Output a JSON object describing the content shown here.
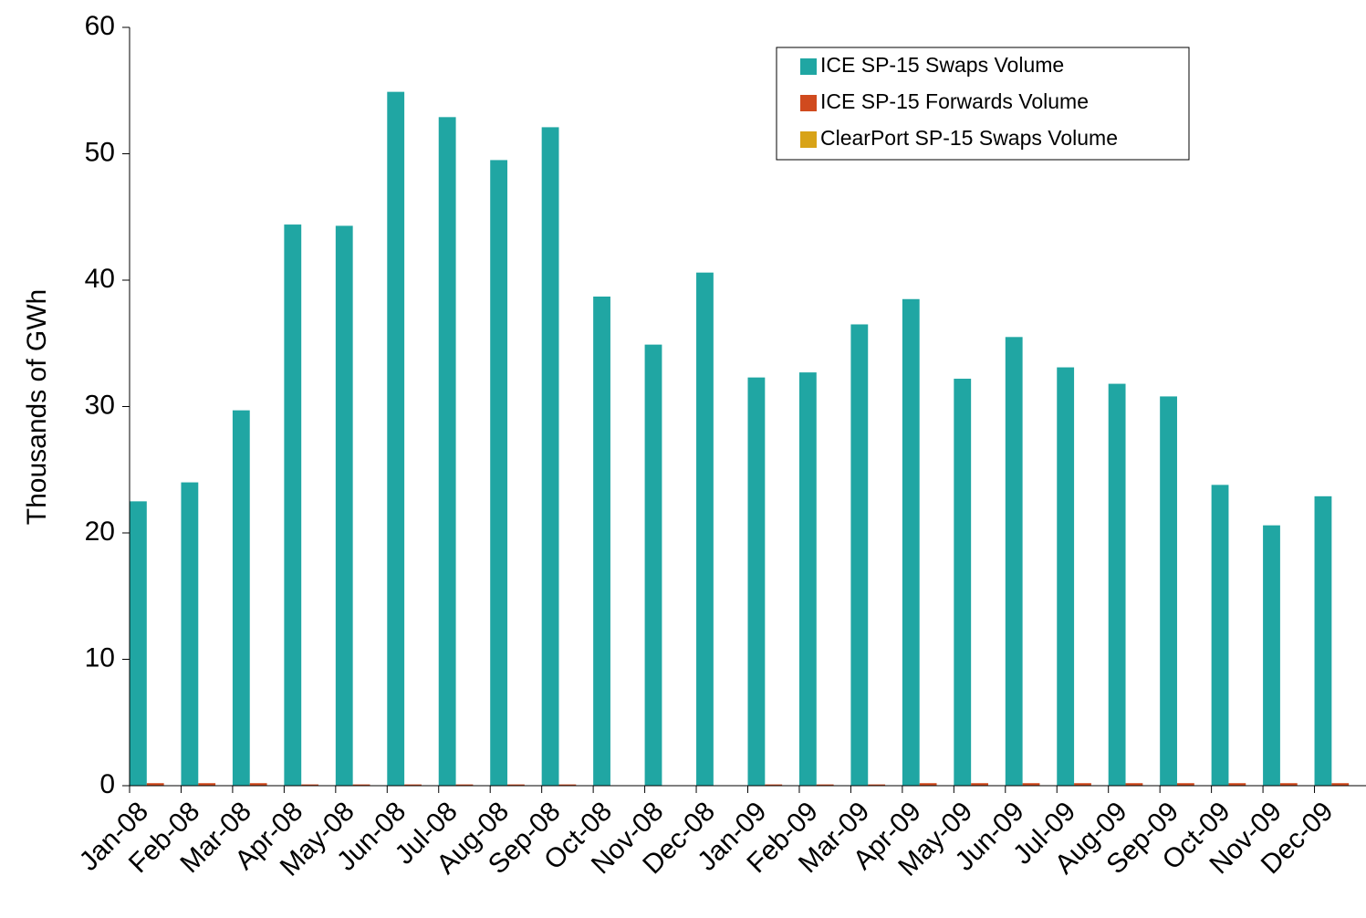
{
  "chart_data": {
    "type": "bar",
    "y_label": "Thousands of GWh",
    "categories": [
      "Jan-08",
      "Feb-08",
      "Mar-08",
      "Apr-08",
      "May-08",
      "Jun-08",
      "Jul-08",
      "Aug-08",
      "Sep-08",
      "Oct-08",
      "Nov-08",
      "Dec-08",
      "Jan-09",
      "Feb-09",
      "Mar-09",
      "Apr-09",
      "May-09",
      "Jun-09",
      "Jul-09",
      "Aug-09",
      "Sep-09",
      "Oct-09",
      "Nov-09",
      "Dec-09"
    ],
    "series": [
      {
        "name": "ICE SP-15 Swaps Volume",
        "color": "#20a6a3",
        "values": [
          22.5,
          24.0,
          29.7,
          44.4,
          44.3,
          54.9,
          52.9,
          49.5,
          52.1,
          38.7,
          34.9,
          40.6,
          32.3,
          32.7,
          36.5,
          38.5,
          32.2,
          35.5,
          33.1,
          31.8,
          30.8,
          23.8,
          20.6,
          22.9
        ]
      },
      {
        "name": "ICE SP-15 Forwards Volume",
        "color": "#d04a1e",
        "values": [
          0.2,
          0.2,
          0.2,
          0.1,
          0.1,
          0.1,
          0.1,
          0.1,
          0.1,
          0,
          0,
          0,
          0.1,
          0.1,
          0.1,
          0.2,
          0.2,
          0.2,
          0.2,
          0.2,
          0.2,
          0.2,
          0.2,
          0.2
        ]
      },
      {
        "name": "ClearPort SP-15 Swaps Volume",
        "color": "#d8a317",
        "values": [
          0,
          0,
          0,
          0,
          0,
          0,
          0,
          0,
          0,
          0,
          0,
          0,
          0,
          0,
          0,
          0,
          0,
          0,
          0,
          0,
          0,
          0,
          0,
          0
        ]
      }
    ],
    "ylim": [
      0,
      60
    ],
    "yticks": [
      0,
      10,
      20,
      30,
      40,
      50,
      60
    ],
    "grid": false,
    "legend": "upper right"
  }
}
